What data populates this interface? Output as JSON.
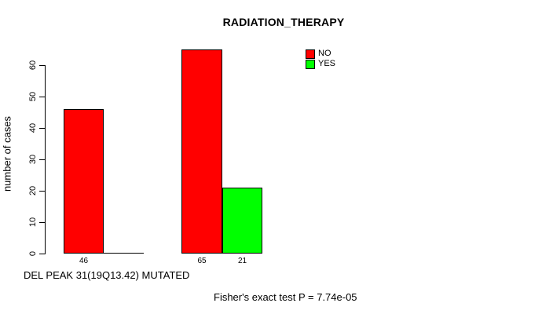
{
  "chart_data": {
    "type": "bar",
    "title": "RADIATION_THERAPY",
    "ylabel": "number of cases",
    "xlabel": "DEL PEAK 31(19Q13.42) MUTATED",
    "annotation": "Fisher's exact test P = 7.74e-05",
    "ylim": [
      0,
      60
    ],
    "y_ticks": [
      0,
      10,
      20,
      30,
      40,
      50,
      60
    ],
    "grid": false,
    "legend_position": "top-right",
    "background_color": "#FFFFFF",
    "axis_color": "#000000",
    "legend": [
      {
        "label": "NO",
        "color": "#FF0000"
      },
      {
        "label": "YES",
        "color": "#00FF00"
      }
    ],
    "series": [
      {
        "name": "NO",
        "color": "#FF0000",
        "values": [
          46,
          65
        ]
      },
      {
        "name": "YES",
        "color": "#00FF00",
        "values": [
          0,
          21
        ]
      }
    ],
    "bar_value_labels": [
      [
        "46",
        ""
      ],
      [
        "65",
        "21"
      ]
    ]
  }
}
